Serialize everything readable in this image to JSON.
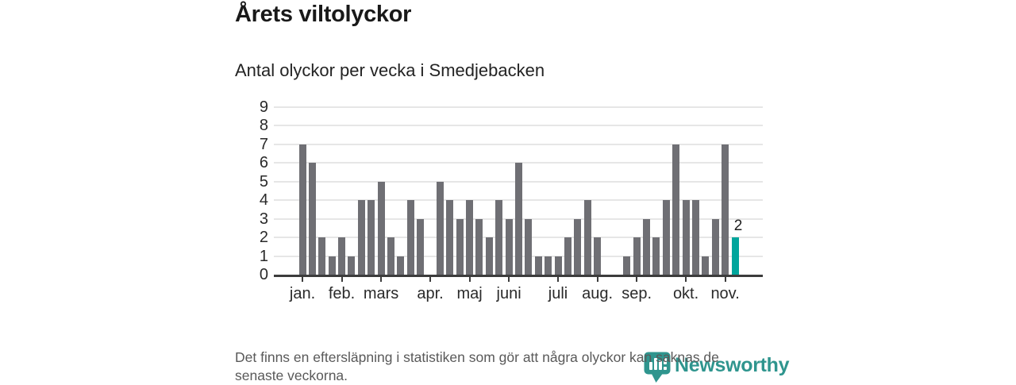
{
  "header": {
    "title": "Årets viltolyckor",
    "subtitle": "Antal olyckor per vecka i Smedjebacken"
  },
  "footer": {
    "lines": [
      "Det finns en eftersläpning i statistiken som gör att några olyckor kan saknas de",
      "senaste veckorna."
    ]
  },
  "brand": {
    "name": "Newsworthy",
    "icon": "bar-chart-pin-icon",
    "color": "#2f958e"
  },
  "chart_data": {
    "type": "bar",
    "title": "Årets viltolyckor",
    "subtitle": "Antal olyckor per vecka i Smedjebacken",
    "x_description": "weeks of the year, January to mid-November, one bar per week",
    "ylim": [
      0,
      9
    ],
    "y_ticks": [
      0,
      1,
      2,
      3,
      4,
      5,
      6,
      7,
      8,
      9
    ],
    "grid": true,
    "legend": null,
    "values": [
      7,
      6,
      2,
      1,
      2,
      1,
      4,
      4,
      5,
      2,
      1,
      4,
      3,
      0,
      5,
      4,
      3,
      4,
      3,
      2,
      4,
      3,
      6,
      3,
      1,
      1,
      1,
      2,
      3,
      4,
      2,
      0,
      0,
      1,
      2,
      3,
      2,
      4,
      7,
      4,
      4,
      1,
      3,
      7,
      2
    ],
    "month_ticks": [
      {
        "label": "jan.",
        "week": 0
      },
      {
        "label": "feb.",
        "week": 4
      },
      {
        "label": "mars",
        "week": 8
      },
      {
        "label": "apr.",
        "week": 13
      },
      {
        "label": "maj",
        "week": 17
      },
      {
        "label": "juni",
        "week": 21
      },
      {
        "label": "juli",
        "week": 26
      },
      {
        "label": "aug.",
        "week": 30
      },
      {
        "label": "sep.",
        "week": 34
      },
      {
        "label": "okt.",
        "week": 39
      },
      {
        "label": "nov.",
        "week": 43
      }
    ],
    "highlight": {
      "index": 44,
      "label": "2"
    },
    "colors": {
      "bar": "#6f6f74",
      "highlight": "#00a59c",
      "grid": "#e6e6e6",
      "axis": "#3c3c3c",
      "labels": "#2a2a2a"
    }
  }
}
